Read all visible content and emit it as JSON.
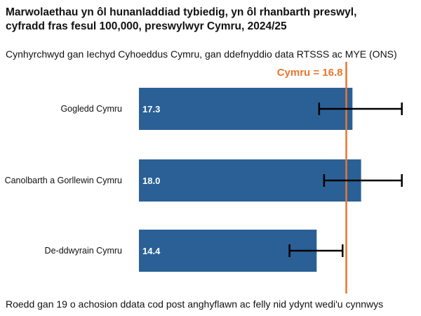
{
  "title": "Marwolaethau yn ôl hunanladdiad tybiedig, yn ôl rhanbarth preswyl, cyfradd fras fesul 100,000, preswylwyr Cymru, 2024/25",
  "subtitle": "Cynhyrchwyd gan Iechyd Cyhoeddus Cymru, gan ddefnyddio data RTSSS ac MYE (ONS)",
  "footnote": "Roedd gan 19 o achosion ddata cod post anghyflawn ac felly nid ydynt wedi'u cynnwys",
  "colors": {
    "bar": "#2a6096",
    "reference": "#e8772e",
    "error": "#000000"
  },
  "chart_data": {
    "type": "bar",
    "orientation": "horizontal",
    "categories": [
      "Gogledd Cymru",
      "Canolbarth a Gorllewin Cymru",
      "De-ddwyrain Cymru"
    ],
    "values": [
      17.3,
      18.0,
      14.4
    ],
    "value_labels": [
      "17.3",
      "18.0",
      "14.4"
    ],
    "error_low": [
      14.6,
      15.0,
      12.2
    ],
    "error_high": [
      21.3,
      21.3,
      16.5
    ],
    "reference": {
      "label": "Cymru = 16.8",
      "value": 16.8
    },
    "xlim": [
      0,
      22
    ],
    "grid": false,
    "xlabel": "",
    "ylabel": ""
  }
}
